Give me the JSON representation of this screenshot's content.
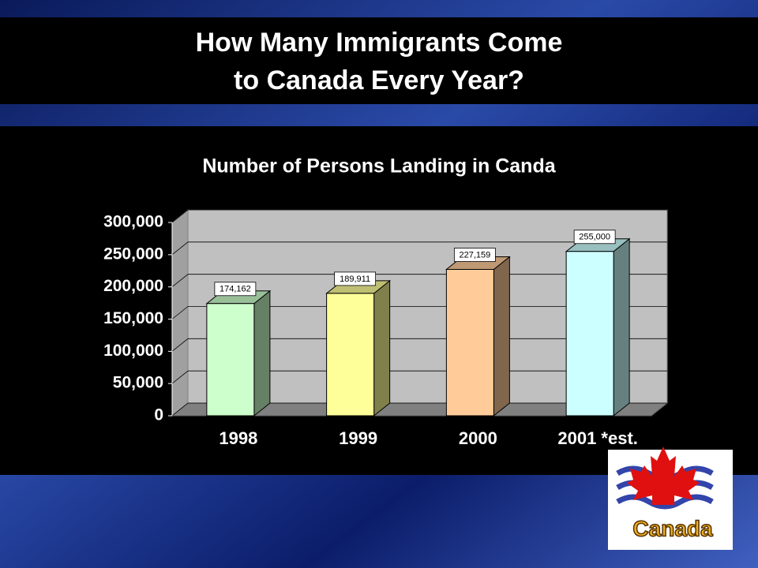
{
  "slide_title": [
    "How Many Immigrants Come",
    "to Canada Every Year?"
  ],
  "logo_text": "Canada",
  "chart_data": {
    "type": "bar3d",
    "title": "Number of Persons Landing in Canda",
    "categories": [
      "1998",
      "1999",
      "2000",
      "2001 *est."
    ],
    "values": [
      174162,
      189911,
      227159,
      255000
    ],
    "value_labels": [
      "174,162",
      "189,911",
      "227,159",
      "255,000"
    ],
    "colors": [
      "#ccffcc",
      "#ffff99",
      "#ffcc99",
      "#ccffff"
    ],
    "ylim": [
      0,
      300000
    ],
    "yticks": [
      0,
      {
        "value": 50000,
        "label": "50,000"
      },
      {
        "value": 100000,
        "label": "100,000"
      },
      {
        "value": 150000,
        "label": "150,000"
      },
      {
        "value": 200000,
        "label": "200,000"
      },
      {
        "value": 250000,
        "label": "250,000"
      },
      {
        "value": 300000,
        "label": "300,000"
      }
    ],
    "grid": true
  }
}
